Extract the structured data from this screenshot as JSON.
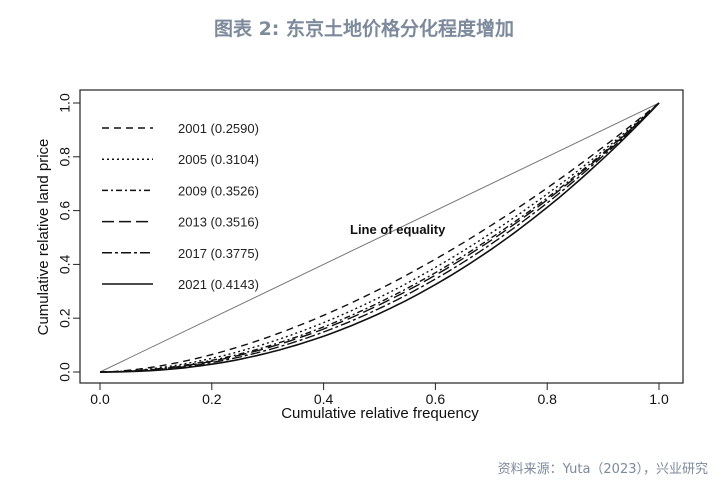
{
  "title": "图表 2:  东京土地价格分化程度增加",
  "source": "资料来源：Yuta（2023），兴业研究",
  "chart_data": {
    "type": "line",
    "title": "",
    "xlabel": "Cumulative relative frequency",
    "ylabel": "Cumulative relative land price",
    "xlim": [
      0,
      1
    ],
    "ylim": [
      0,
      1
    ],
    "xticks": [
      "0.0",
      "0.2",
      "0.4",
      "0.6",
      "0.8",
      "1.0"
    ],
    "yticks": [
      "0.0",
      "0.2",
      "0.4",
      "0.6",
      "0.8",
      "1.0"
    ],
    "annotation": "Line of equality",
    "legend_position": "top-left",
    "series": [
      {
        "name": "2001 (0.2590)",
        "year": 2001,
        "gini": 0.259,
        "style": "dashed",
        "exponent": 1.7
      },
      {
        "name": "2005 (0.3104)",
        "year": 2005,
        "gini": 0.3104,
        "style": "dotted",
        "exponent": 1.85
      },
      {
        "name": "2009 (0.3526)",
        "year": 2009,
        "gini": 0.3526,
        "style": "dot-dash",
        "exponent": 1.95
      },
      {
        "name": "2013 (0.3516)",
        "year": 2013,
        "gini": 0.3516,
        "style": "long-dash",
        "exponent": 2.0
      },
      {
        "name": "2017 (0.3775)",
        "year": 2017,
        "gini": 0.3775,
        "style": "two-dash",
        "exponent": 2.08
      },
      {
        "name": "2021 (0.4143)",
        "year": 2021,
        "gini": 0.4143,
        "style": "solid",
        "exponent": 2.2
      }
    ]
  }
}
